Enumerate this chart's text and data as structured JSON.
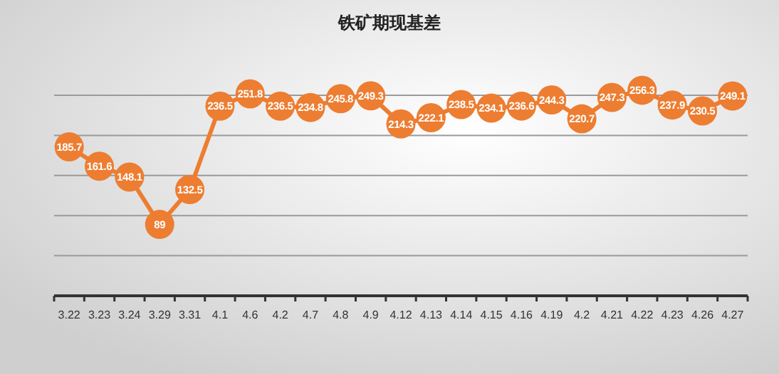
{
  "chart_data": {
    "type": "line",
    "title": "铁矿期现基差",
    "categories": [
      "3.22",
      "3.23",
      "3.24",
      "3.29",
      "3.31",
      "4.1",
      "4.6",
      "4.2",
      "4.7",
      "4.8",
      "4.9",
      "4.12",
      "4.13",
      "4.14",
      "4.15",
      "4.16",
      "4.19",
      "4.2",
      "4.21",
      "4.22",
      "4.23",
      "4.26",
      "4.27"
    ],
    "series": [
      {
        "color": "#ed7d31",
        "values": [
          185.7,
          161.6,
          148.1,
          89,
          132.5,
          236.5,
          251.8,
          236.5,
          234.8,
          245.8,
          249.3,
          214.3,
          222.1,
          238.5,
          234.1,
          236.6,
          244.3,
          220.7,
          247.3,
          256.3,
          237.9,
          230.5,
          249.1
        ]
      }
    ],
    "yticks": [
      {
        "value": 50,
        "label": null
      },
      {
        "value": 100,
        "label": null
      },
      {
        "value": 150,
        "label": null
      },
      {
        "value": 200,
        "label": null
      },
      {
        "value": 250,
        "label": null
      }
    ],
    "grid": "y",
    "tick_labels": "x",
    "marker": "circle",
    "data_labels": true
  }
}
